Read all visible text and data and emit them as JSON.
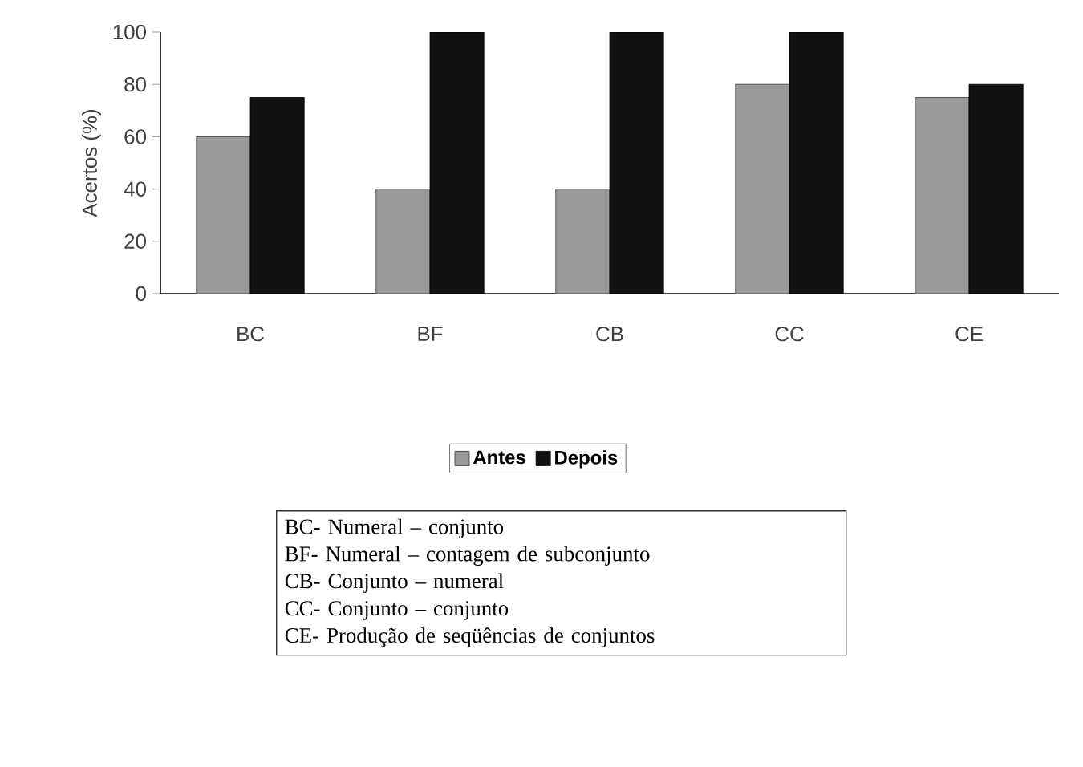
{
  "chart_data": {
    "type": "bar",
    "ylabel": "Acertos (%)",
    "categories": [
      "BC",
      "BF",
      "CB",
      "CC",
      "CE"
    ],
    "series": [
      {
        "name": "Antes",
        "color": "#9a9a9a",
        "values": [
          60,
          40,
          40,
          80,
          75
        ]
      },
      {
        "name": "Depois",
        "color": "#111111",
        "values": [
          75,
          100,
          100,
          100,
          80
        ]
      }
    ],
    "ylim": [
      0,
      100
    ],
    "yticks": [
      0,
      20,
      40,
      60,
      80,
      100
    ],
    "legend": "bottom",
    "annotations": [
      "BC- Numeral – conjunto",
      "BF- Numeral – contagem de subconjunto",
      "CB- Conjunto – numeral",
      "CC- Conjunto – conjunto",
      "CE- Produção de seqüências de conjuntos"
    ]
  }
}
